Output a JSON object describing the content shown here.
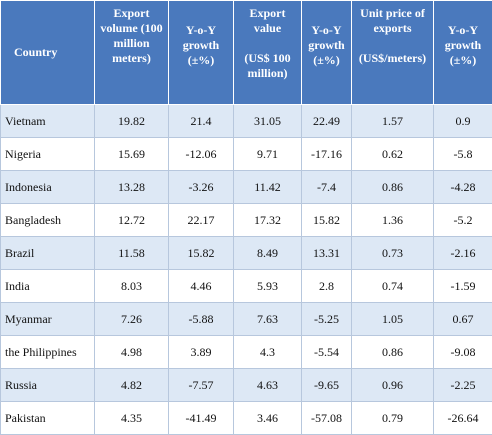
{
  "header": {
    "country": "Country",
    "export_volume": [
      "Export",
      "volume (100",
      "million",
      "meters)"
    ],
    "volume_growth": [
      "Y-o-Y",
      "growth",
      "(±%)"
    ],
    "export_value": [
      "Export",
      "value",
      "",
      "(US$ 100",
      "million)"
    ],
    "value_growth": [
      "Y-o-Y",
      "growth",
      "(±%)"
    ],
    "unit_price": [
      "Unit price of",
      "exports",
      "",
      "(US$/meters)"
    ],
    "price_growth": [
      "Y-o-Y",
      "growth",
      "(±%)"
    ]
  },
  "rows": [
    [
      "Vietnam",
      "19.82",
      "21.4",
      "31.05",
      "22.49",
      "1.57",
      "0.9"
    ],
    [
      "Nigeria",
      "15.69",
      "-12.06",
      "9.71",
      "-17.16",
      "0.62",
      "-5.8"
    ],
    [
      "Indonesia",
      "13.28",
      "-3.26",
      "11.42",
      "-7.4",
      "0.86",
      "-4.28"
    ],
    [
      "Bangladesh",
      "12.72",
      "22.17",
      "17.32",
      "15.82",
      "1.36",
      "-5.2"
    ],
    [
      "Brazil",
      "11.58",
      "15.82",
      "8.49",
      "13.31",
      "0.73",
      "-2.16"
    ],
    [
      "India",
      "8.03",
      "4.46",
      "5.93",
      "2.8",
      "0.74",
      "-1.59"
    ],
    [
      "Myanmar",
      "7.26",
      "-5.88",
      "7.63",
      "-5.25",
      "1.05",
      "0.67"
    ],
    [
      "the Philippines",
      "4.98",
      "3.89",
      "4.3",
      "-5.54",
      "0.86",
      "-9.08"
    ],
    [
      "Russia",
      "4.82",
      "-7.57",
      "4.63",
      "-9.65",
      "0.96",
      "-2.25"
    ],
    [
      "Pakistan",
      "4.35",
      "-41.49",
      "3.46",
      "-57.08",
      "0.79",
      "-26.64"
    ]
  ],
  "colors": {
    "header_bg": "#4a79bd",
    "row_alt_bg": "#dde8f5",
    "row_bg": "#ffffff",
    "grid": "#b7c7dd"
  }
}
